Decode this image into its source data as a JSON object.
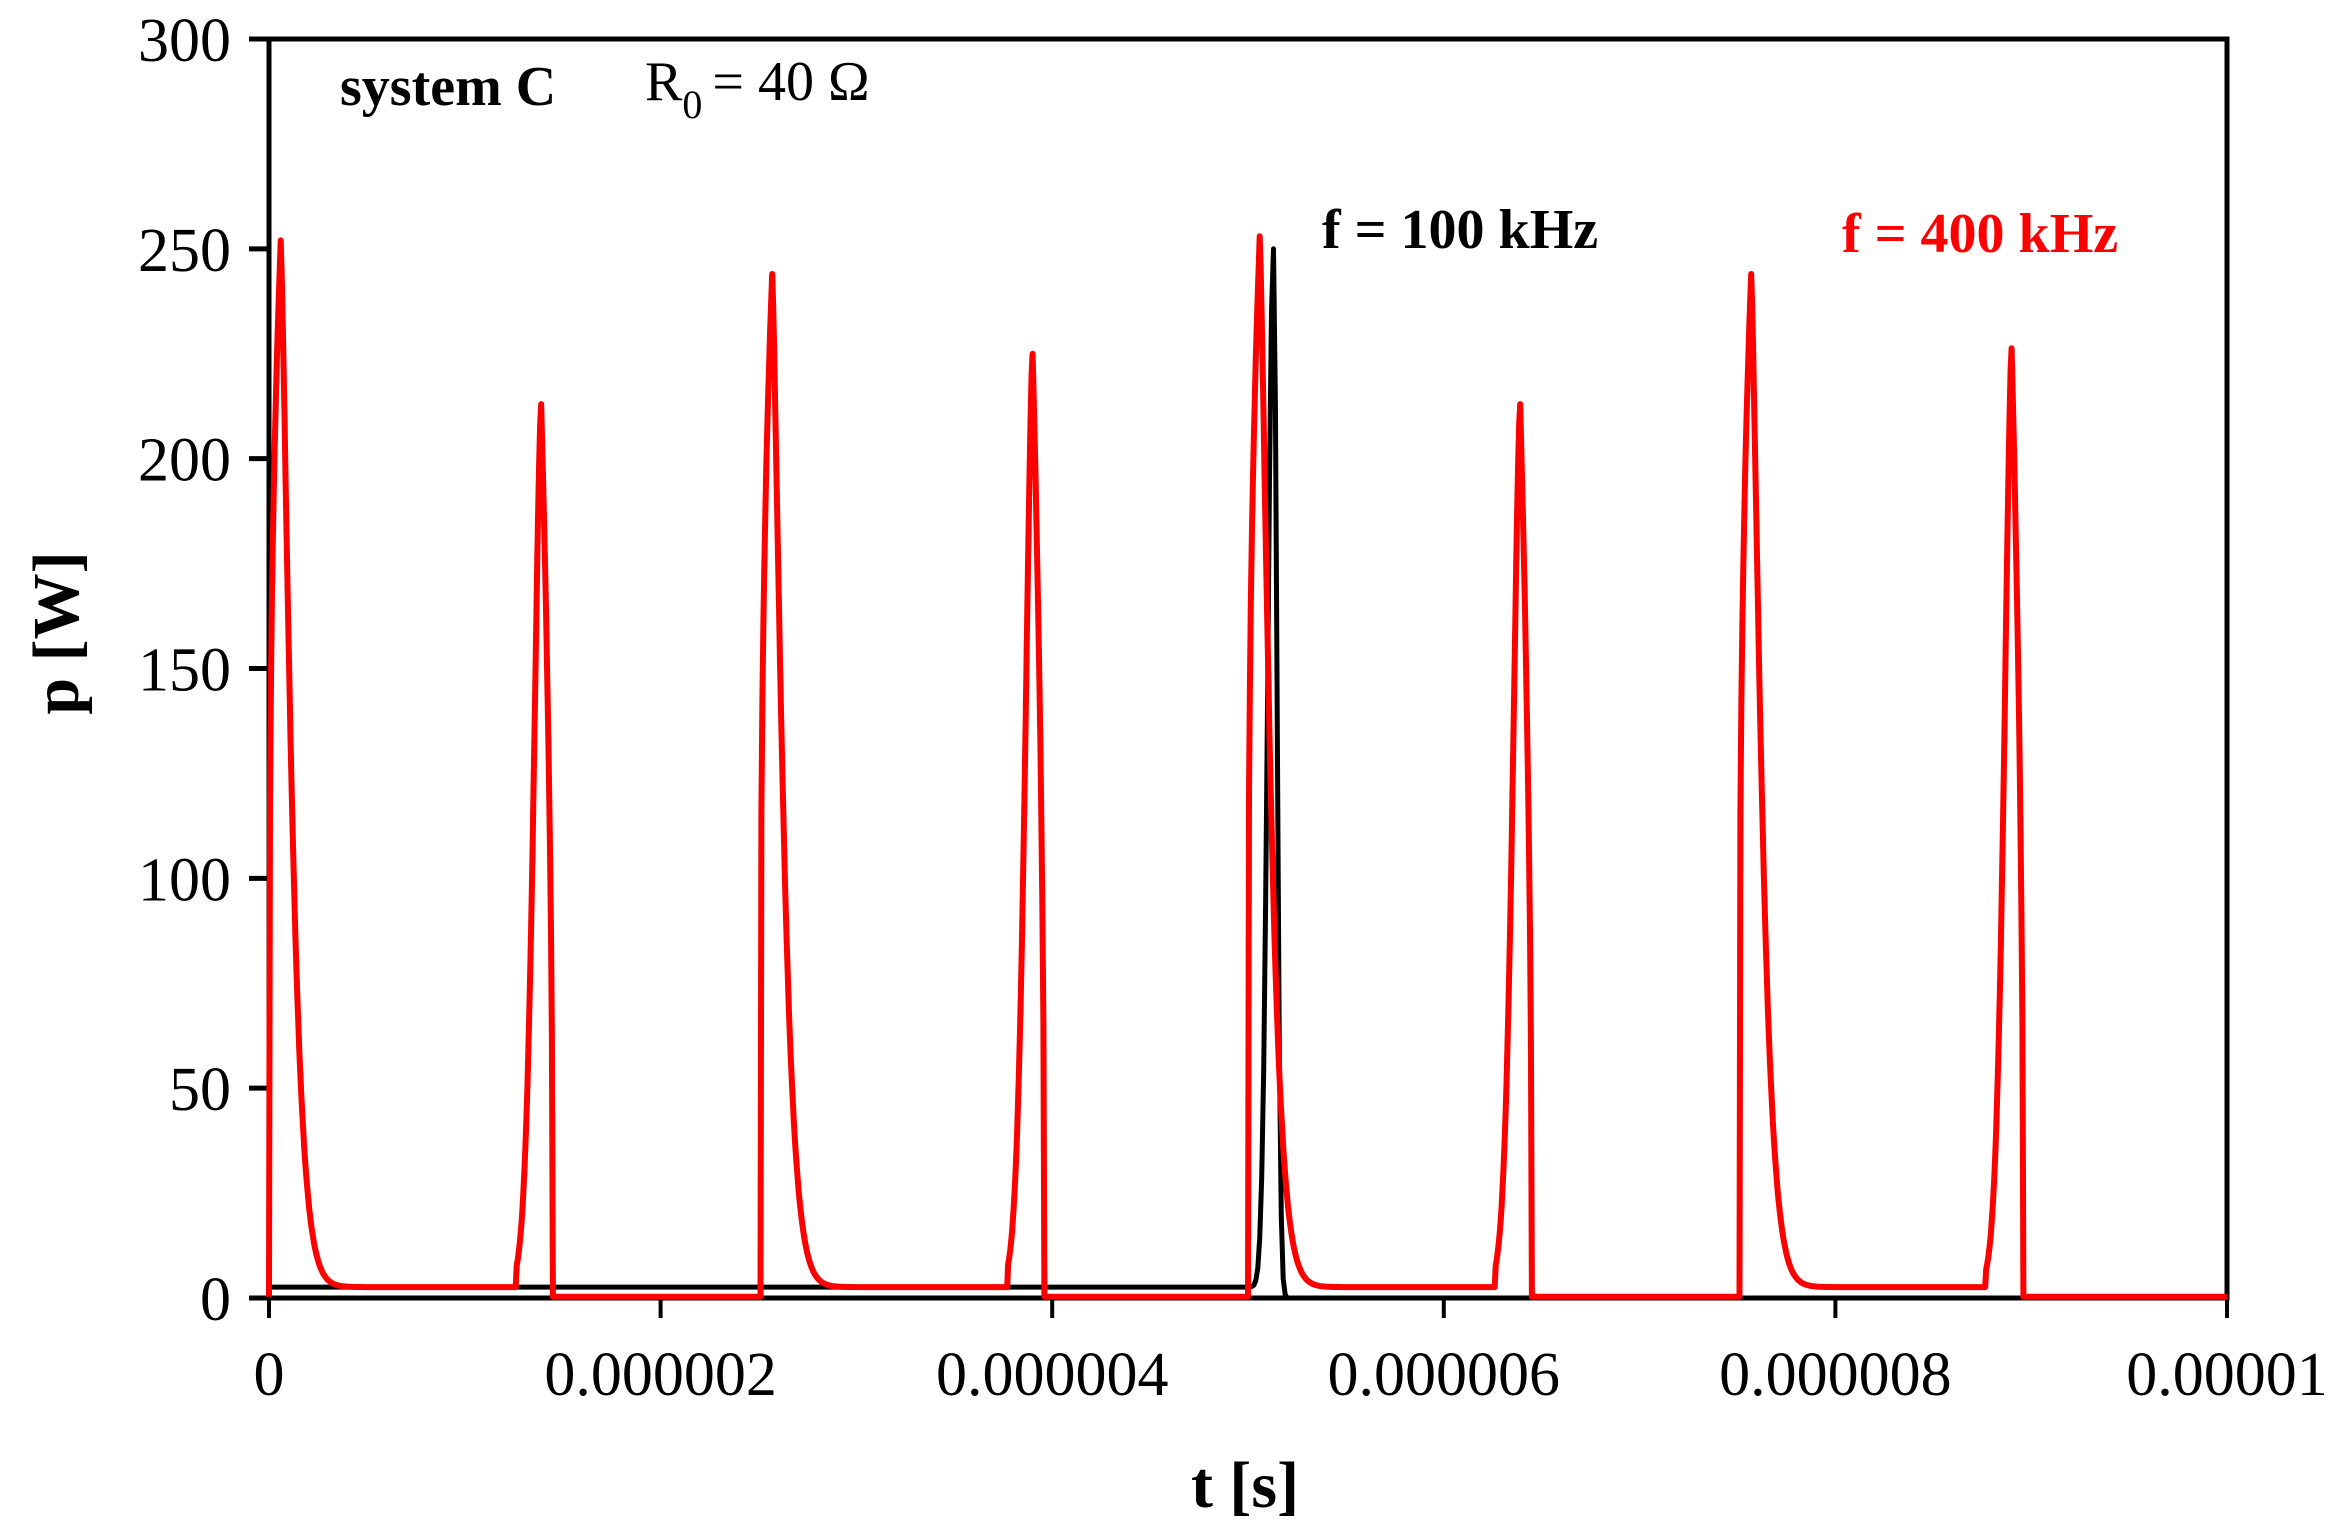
{
  "chart_data": {
    "type": "line",
    "title": "system C  R0 = 40 Ω",
    "annotation": {
      "system": "system C",
      "resistance_symbol": "R",
      "resistance_subscript": "0",
      "resistance_value": "= 40 Ω"
    },
    "xlabel": "t [s]",
    "ylabel": "p [W]",
    "xlim": [
      0,
      1e-05
    ],
    "ylim": [
      0,
      300
    ],
    "x_ticks": [
      0,
      2e-06,
      4e-06,
      6e-06,
      8e-06,
      1e-05
    ],
    "x_tick_labels": [
      "0",
      "0.000002",
      "0.000004",
      "0.000006",
      "0.000008",
      "0.00001"
    ],
    "y_ticks": [
      0,
      50,
      100,
      150,
      200,
      250,
      300
    ],
    "y_tick_labels": [
      "0",
      "50",
      "100",
      "150",
      "200",
      "250",
      "300"
    ],
    "grid": false,
    "legend_position": "inline-top-right",
    "series": [
      {
        "name": "f = 100 kHz",
        "color": "#000000",
        "baseline_before_peak_W": 2.6,
        "baseline_after_peak_W": 0,
        "peaks": [
          {
            "t": 5.13e-06,
            "p": 250
          }
        ]
      },
      {
        "name": "f = 400 kHz",
        "color": "#ff0000",
        "baseline_high_W": 2.6,
        "baseline_low_W": 0.3,
        "peaks": [
          {
            "t": 6e-08,
            "p": 252,
            "shape": "decay"
          },
          {
            "t": 1.39e-06,
            "p": 213,
            "shape": "rise"
          },
          {
            "t": 2.57e-06,
            "p": 244,
            "shape": "decay"
          },
          {
            "t": 3.9e-06,
            "p": 225,
            "shape": "rise"
          },
          {
            "t": 5.06e-06,
            "p": 253,
            "shape": "decay"
          },
          {
            "t": 6.39e-06,
            "p": 213,
            "shape": "rise"
          },
          {
            "t": 7.57e-06,
            "p": 244,
            "shape": "decay"
          },
          {
            "t": 8.9e-06,
            "p": 226,
            "shape": "rise"
          }
        ]
      }
    ]
  }
}
